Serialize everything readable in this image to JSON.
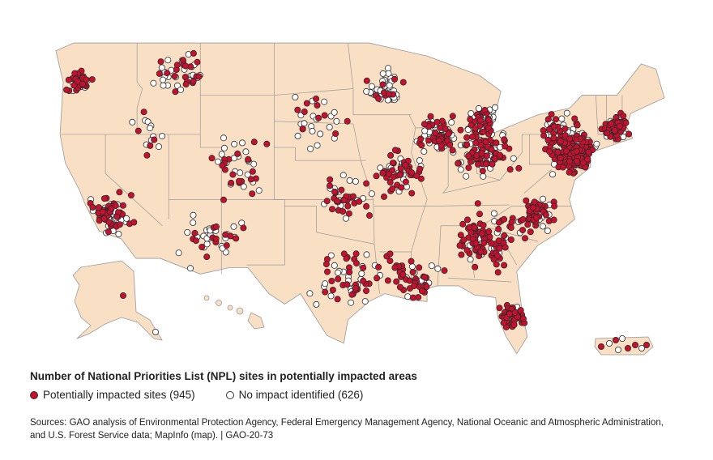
{
  "legend": {
    "title": "Number of National Priorities List (NPL) sites in potentially impacted areas",
    "impacted_label": "Potentially impacted sites (945)",
    "not_impacted_label": "No impact identified (626)",
    "impacted_count": 945,
    "not_impacted_count": 626
  },
  "colors": {
    "land": "#f9dfc3",
    "border": "#9a9a9a",
    "impacted": "#c8102e",
    "not_impacted": "#ffffff",
    "dot_stroke": "#2a2a2a"
  },
  "sources": "Sources: GAO analysis of Environmental Protection Agency, Federal Emergency Management Agency, National Oceanic and Atmospheric Administration, and U.S. Forest Service data; MapInfo (map).  |  GAO-20-73",
  "site_clusters_lonlat": [
    [
      -75.5,
      40.5,
      1.8,
      150,
      40
    ],
    [
      -71.5,
      42.5,
      1.3,
      50,
      20
    ],
    [
      -77,
      42,
      2,
      40,
      40
    ],
    [
      -84,
      40.5,
      2.5,
      60,
      40
    ],
    [
      -84,
      43,
      1.5,
      25,
      45
    ],
    [
      -88.5,
      42,
      1.8,
      40,
      40
    ],
    [
      -93.5,
      45.5,
      1.8,
      10,
      40
    ],
    [
      -92,
      39,
      2.5,
      40,
      20
    ],
    [
      -84,
      34,
      3,
      80,
      20
    ],
    [
      -91,
      30.8,
      3,
      40,
      10
    ],
    [
      -81.5,
      28,
      1.2,
      45,
      5
    ],
    [
      -97,
      31,
      3,
      30,
      25
    ],
    [
      -97,
      37,
      2.5,
      25,
      15
    ],
    [
      -107,
      39.5,
      3,
      20,
      20
    ],
    [
      -110,
      34,
      3,
      15,
      25
    ],
    [
      -119.5,
      36,
      2,
      50,
      25
    ],
    [
      -122.5,
      46,
      1.2,
      30,
      15
    ],
    [
      -113,
      46.5,
      2.5,
      20,
      25
    ],
    [
      -116,
      42,
      2,
      5,
      10
    ],
    [
      -100,
      43,
      3,
      10,
      20
    ],
    [
      -79,
      36,
      2,
      40,
      15
    ]
  ]
}
